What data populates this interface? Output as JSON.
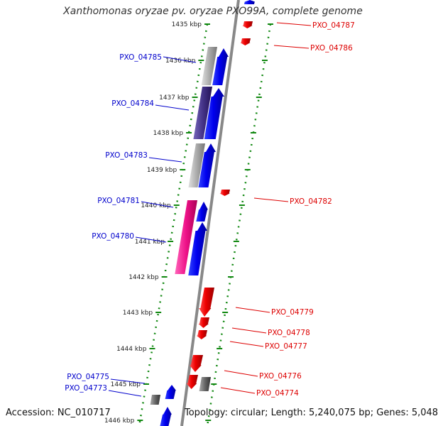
{
  "title": "Xanthomonas oryzae pv. oryzae PXO99A, complete genome",
  "footer": {
    "accession": "Accession: NC_010717",
    "summary": "Topology: circular; Length: 5,240,075 bp; Genes: 5,048"
  },
  "colors": {
    "forward_gene": "#0000ee",
    "reverse_gene": "#ee0000",
    "forward_label": "#0000cc",
    "reverse_label": "#dd0000",
    "tick": "#118811",
    "backbone": "#888888"
  },
  "ticks": [
    {
      "label": "1435 kbp"
    },
    {
      "label": "1436 kbp"
    },
    {
      "label": "1437 kbp"
    },
    {
      "label": "1438 kbp"
    },
    {
      "label": "1439 kbp"
    },
    {
      "label": "1440 kbp"
    },
    {
      "label": "1441 kbp"
    },
    {
      "label": "1442 kbp"
    },
    {
      "label": "1443 kbp"
    },
    {
      "label": "1444 kbp"
    },
    {
      "label": "1445 kbp"
    },
    {
      "label": "1446 kbp"
    }
  ],
  "forward_labels": [
    "PXO_04785",
    "PXO_04784",
    "PXO_04783",
    "PXO_04781",
    "PXO_04780",
    "PXO_04775",
    "PXO_04773"
  ],
  "reverse_labels": [
    "PXO_04787",
    "PXO_04786",
    "PXO_04782",
    "PXO_04779",
    "PXO_04778",
    "PXO_04777",
    "PXO_04776",
    "PXO_04774"
  ]
}
